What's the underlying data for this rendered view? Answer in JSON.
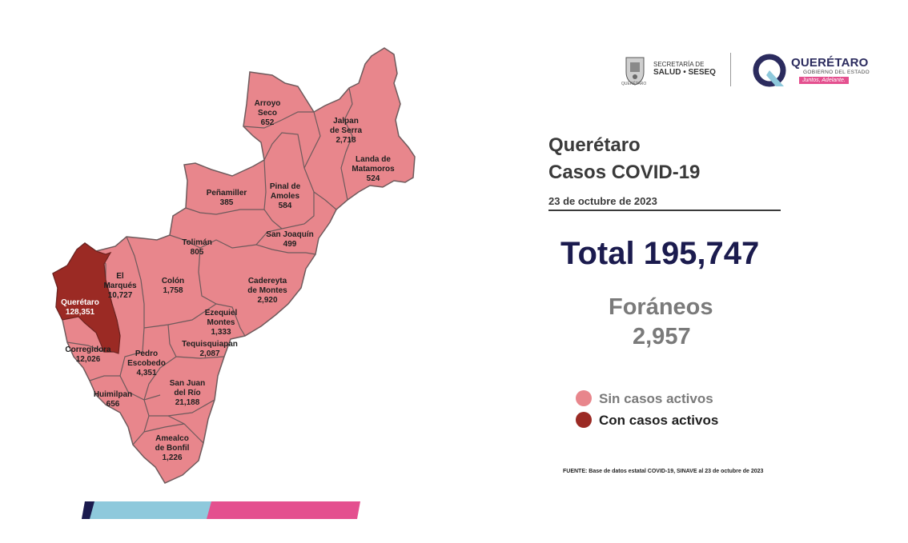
{
  "logos": {
    "seseq_line1": "SECRETARÍA DE",
    "seseq_line2": "SALUD • SESEQ",
    "seseq_caption": "QUERÉTARO",
    "qro_title": "QUERÉTARO",
    "qro_subtitle": "GOBIERNO DEL ESTADO",
    "qro_tagline": "Juntos, Adelante."
  },
  "header": {
    "title_line1": "Querétaro",
    "title_line2": "Casos COVID-19",
    "date": "23 de octubre de 2023"
  },
  "totals": {
    "total": "Total 195,747",
    "foraneos_label": "Foráneos",
    "foraneos_value": "2,957"
  },
  "legend": {
    "inactive_label": "Sin casos activos",
    "active_label": "Con casos activos"
  },
  "colors": {
    "inactive": "#e8868c",
    "active": "#9b2a24",
    "border": "#6e5a5c",
    "bar_navy": "#1b1b4e",
    "bar_blue": "#8ec9dc",
    "bar_pink": "#e4508f"
  },
  "source": "FUENTE: Base de datos estatal COVID-19, SINAVE al 23 de octubre de 2023",
  "municipalities": [
    {
      "name": "Arroyo Seco",
      "line1": "Arroyo",
      "line2": "Seco",
      "value": "652",
      "active": false
    },
    {
      "name": "Jalpan de Serra",
      "line1": "Jalpan",
      "line2": "de Serra",
      "value": "2,718",
      "active": false
    },
    {
      "name": "Landa de Matamoros",
      "line1": "Landa de",
      "line2": "Matamoros",
      "value": "524",
      "active": false
    },
    {
      "name": "Pinal de Amoles",
      "line1": "Pinal de",
      "line2": "Amoles",
      "value": "584",
      "active": false
    },
    {
      "name": "Peñamiller",
      "line1": "Peñamiller",
      "line2": "",
      "value": "385",
      "active": false
    },
    {
      "name": "San Joaquín",
      "line1": "San Joaquín",
      "line2": "",
      "value": "499",
      "active": false
    },
    {
      "name": "Tolimán",
      "line1": "Tolimán",
      "line2": "",
      "value": "805",
      "active": false
    },
    {
      "name": "El Marqués",
      "line1": "El",
      "line2": "Marqués",
      "value": "10,727",
      "active": false
    },
    {
      "name": "Colón",
      "line1": "Colón",
      "line2": "",
      "value": "1,758",
      "active": false
    },
    {
      "name": "Cadereyta de Montes",
      "line1": "Cadereyta",
      "line2": "de Montes",
      "value": "2,920",
      "active": false
    },
    {
      "name": "Querétaro",
      "line1": "Querétaro",
      "line2": "",
      "value": "128,351",
      "active": true
    },
    {
      "name": "Ezequiel Montes",
      "line1": "Ezequiel",
      "line2": "Montes",
      "value": "1,333",
      "active": false
    },
    {
      "name": "Corregidora",
      "line1": "Corregidora",
      "line2": "",
      "value": "12,026",
      "active": false
    },
    {
      "name": "Pedro Escobedo",
      "line1": "Pedro",
      "line2": "Escobedo",
      "value": "4,351",
      "active": false
    },
    {
      "name": "Tequisquiapan",
      "line1": "Tequisquiapan",
      "line2": "",
      "value": "2,087",
      "active": false
    },
    {
      "name": "San Juan del Río",
      "line1": "San Juan",
      "line2": "del Río",
      "value": "21,188",
      "active": false
    },
    {
      "name": "Huimilpan",
      "line1": "Huimilpan",
      "line2": "",
      "value": "656",
      "active": false
    },
    {
      "name": "Amealco de Bonfil",
      "line1": "Amealco",
      "line2": "de Bonfil",
      "value": "1,226",
      "active": false
    }
  ]
}
